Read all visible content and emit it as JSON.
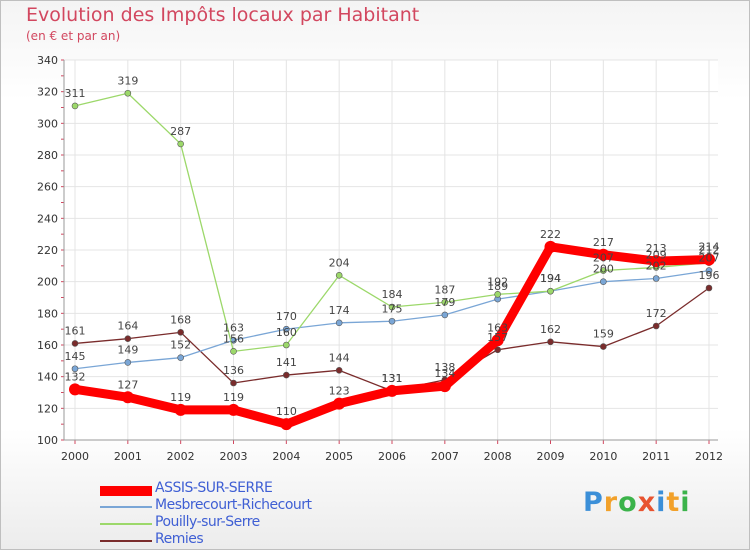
{
  "chart_data": {
    "type": "line",
    "title": "Evolution des Impôts locaux par Habitant",
    "subtitle": "(en € et par an)",
    "xlabel": "",
    "ylabel": "",
    "x": [
      "2000",
      "2001",
      "2002",
      "2003",
      "2004",
      "2005",
      "2006",
      "2007",
      "2008",
      "2009",
      "2010",
      "2011",
      "2012"
    ],
    "ylim": [
      100,
      340
    ],
    "yticks": [
      100,
      120,
      140,
      160,
      180,
      200,
      220,
      240,
      260,
      280,
      300,
      320,
      340
    ],
    "grid": true,
    "legend_position": "bottom-left",
    "series": [
      {
        "name": "ASSIS-SUR-SERRE",
        "color": "#ff0000",
        "labels_shown": true,
        "values": [
          132,
          127,
          119,
          119,
          110,
          123,
          131,
          134,
          163,
          222,
          217,
          213,
          214
        ]
      },
      {
        "name": "Mesbrecourt-Richecourt",
        "color": "#7aa6d6",
        "labels_shown": true,
        "values": [
          145,
          149,
          152,
          163,
          170,
          174,
          175,
          179,
          189,
          194,
          200,
          202,
          207
        ]
      },
      {
        "name": "Pouilly-sur-Serre",
        "color": "#9cd86a",
        "labels_shown": true,
        "values": [
          311,
          319,
          287,
          156,
          160,
          204,
          184,
          187,
          192,
          194,
          207,
          209,
          212
        ]
      },
      {
        "name": "Remies",
        "color": "#7a2c2c",
        "labels_shown": true,
        "values": [
          161,
          164,
          168,
          136,
          141,
          144,
          131,
          138,
          157,
          162,
          159,
          172,
          196
        ]
      }
    ]
  },
  "legend": {
    "items": [
      {
        "label": "ASSIS-SUR-SERRE",
        "color": "#ff0000"
      },
      {
        "label": "Mesbrecourt-Richecourt",
        "color": "#7aa6d6"
      },
      {
        "label": "Pouilly-sur-Serre",
        "color": "#9cd86a"
      },
      {
        "label": "Remies",
        "color": "#7a2c2c"
      }
    ]
  },
  "logo": {
    "letters": [
      "P",
      "r",
      "o",
      "x",
      "i",
      "t",
      "i"
    ],
    "colors": [
      "#3b8fd8",
      "#f2a12a",
      "#3bb34a",
      "#e8532f",
      "#3b8fd8",
      "#f2a12a",
      "#3bb34a"
    ]
  }
}
